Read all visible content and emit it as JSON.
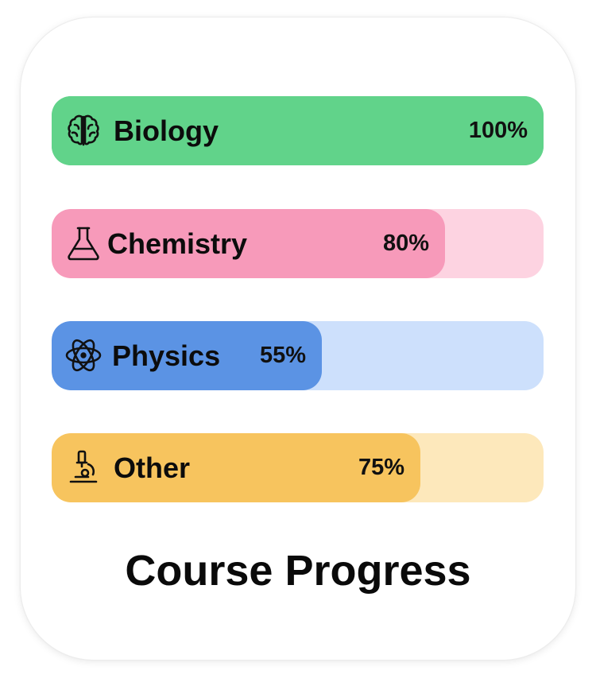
{
  "title": "Course Progress",
  "courses": [
    {
      "label": "Biology",
      "icon": "brain-icon",
      "percent_text": "100%",
      "progress": 1.0,
      "fill_color": "#61d38a",
      "track_color": "#61d38a"
    },
    {
      "label": "Chemistry",
      "icon": "flask-icon",
      "percent_text": "80%",
      "progress": 0.8,
      "fill_color": "#f79aba",
      "track_color": "#fdd3e1"
    },
    {
      "label": "Physics",
      "icon": "atom-icon",
      "percent_text": "55%",
      "progress": 0.55,
      "fill_color": "#5b93e4",
      "track_color": "#cde0fc"
    },
    {
      "label": "Other",
      "icon": "microscope-icon",
      "percent_text": "75%",
      "progress": 0.75,
      "fill_color": "#f7c45e",
      "track_color": "#fde8bb"
    }
  ]
}
